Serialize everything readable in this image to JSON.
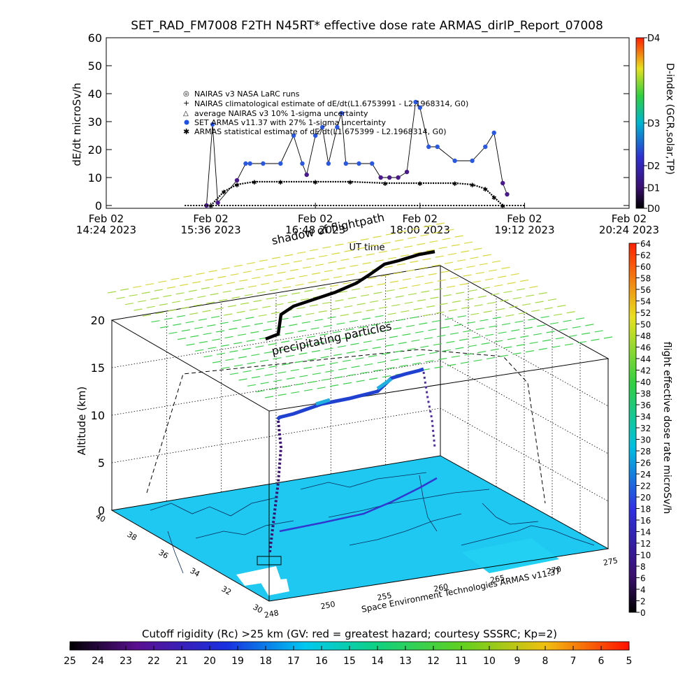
{
  "top_chart": {
    "title": "SET_RAD_FM7008   F2TH N45RT* effective dose rate ARMAS_dirIP_Report_07008",
    "ylabel": "dE/dt microSv/h",
    "xlabel": "UT time",
    "y_ticks": [
      "0",
      "10",
      "20",
      "30",
      "40",
      "50",
      "60"
    ],
    "x_ticks": [
      {
        "line1": "Feb 02",
        "line2": "14:24 2023"
      },
      {
        "line1": "Feb 02",
        "line2": "15:36 2023"
      },
      {
        "line1": "Feb 02",
        "line2": "16:48 2023"
      },
      {
        "line1": "Feb 02",
        "line2": "18:00 2023"
      },
      {
        "line1": "Feb 02",
        "line2": "19:12 2023"
      },
      {
        "line1": "Feb 02",
        "line2": "20:24 2023"
      }
    ],
    "legend": [
      "NAIRAS v3 NASA LaRC runs",
      "NAIRAS climatological estimate of dE/dt(L1.6753991 - L2.1968314, G0)",
      "average NAIRAS v3 10% 1-sigma uncertainty",
      "SET ARMAS v11.37 with 27% 1-sigma uncertainty",
      "ARMAS statistical estimate of dE/dt(L1.675399 - L2.1968314, G0)"
    ],
    "dindex": {
      "label": "D-index (GCR,solar,TP)",
      "ticks": [
        "D0",
        "D1",
        "D2",
        "D3",
        "D4"
      ]
    }
  },
  "chart_data": [
    {
      "type": "line",
      "title": "SET_RAD_FM7008   F2TH N45RT* effective dose rate ARMAS_dirIP_Report_07008",
      "xlabel": "UT time",
      "ylabel": "dE/dt microSv/h",
      "x_unit": "hours UT (Feb 02 2023)",
      "xlim": [
        14.4,
        20.4
      ],
      "ylim": [
        0,
        60
      ],
      "series": [
        {
          "name": "SET ARMAS v11.37 with 27% 1-sigma uncertainty",
          "x": [
            15.55,
            15.62,
            15.68,
            15.9,
            16.0,
            16.05,
            16.2,
            16.4,
            16.55,
            16.65,
            16.7,
            16.8,
            16.88,
            16.95,
            17.05,
            17.1,
            17.15,
            17.3,
            17.45,
            17.55,
            17.65,
            17.75,
            17.85,
            17.95,
            18.0,
            18.1,
            18.2,
            18.4,
            18.6,
            18.75,
            18.85,
            18.95,
            19.0
          ],
          "y": [
            0,
            29,
            1,
            9,
            15,
            15,
            15,
            15,
            25,
            15,
            11,
            25,
            28,
            15,
            28,
            33,
            15,
            15,
            15,
            10,
            10,
            10,
            12,
            37,
            35,
            21,
            21,
            16,
            16,
            21,
            26,
            8,
            4
          ]
        },
        {
          "name": "ARMAS statistical estimate of dE/dt(L1.675399 - L2.1968314, G0)",
          "x": [
            15.6,
            15.75,
            15.9,
            16.1,
            16.4,
            16.8,
            17.2,
            17.6,
            18.0,
            18.4,
            18.6,
            18.75,
            18.85,
            18.95
          ],
          "y": [
            0,
            5,
            7.5,
            8.5,
            8.5,
            8.5,
            8.5,
            8,
            8,
            8,
            7.5,
            6,
            3,
            0
          ]
        }
      ]
    },
    {
      "type": "scatter",
      "title": "",
      "xlabel": "",
      "ylabel": "Altitude (km)",
      "zlim": [
        0,
        20
      ],
      "z_ticks": [
        "0",
        "5",
        "10",
        "15",
        "20"
      ],
      "lon_ticks": [
        "248",
        "250",
        "255",
        "260",
        "265",
        "270",
        "275"
      ],
      "lat_ticks": [
        "30",
        "32",
        "34",
        "36",
        "38",
        "40"
      ],
      "series": [
        {
          "name": "flight path",
          "lon": [
            250.5,
            251.0,
            253.5,
            256.5,
            259.5,
            262.5,
            265.5,
            267.5,
            268.0
          ],
          "lat": [
            34.0,
            34.5,
            35.2,
            36.0,
            36.8,
            37.6,
            38.4,
            39.0,
            39.2
          ],
          "alt_km": [
            0.3,
            12.0,
            12.5,
            13.0,
            13.5,
            14.0,
            14.5,
            14.8,
            0.3
          ]
        }
      ]
    }
  ],
  "scene3d": {
    "ylabel": "Altitude (km)",
    "annotations": {
      "shadow": "shadow of flightpath",
      "precip": "precipitating particles",
      "credit": "Space Environment Technologies ARMAS v11.37"
    },
    "dose_bar": {
      "label": "flight effective dose rate microSv/h",
      "ticks": [
        "0",
        "2",
        "4",
        "6",
        "8",
        "10",
        "12",
        "14",
        "16",
        "18",
        "20",
        "22",
        "24",
        "26",
        "28",
        "30",
        "32",
        "34",
        "36",
        "38",
        "40",
        "42",
        "44",
        "46",
        "48",
        "50",
        "52",
        "54",
        "56",
        "58",
        "60",
        "62",
        "64"
      ]
    }
  },
  "cutoff_bar": {
    "title": "Cutoff rigidity (Rc) >25 km (GV: red = greatest hazard; courtesy SSSRC; Kp=2)",
    "ticks": [
      "25",
      "24",
      "23",
      "22",
      "21",
      "20",
      "19",
      "18",
      "17",
      "16",
      "15",
      "14",
      "13",
      "12",
      "11",
      "10",
      "9",
      "8",
      "7",
      "6",
      "5"
    ]
  }
}
